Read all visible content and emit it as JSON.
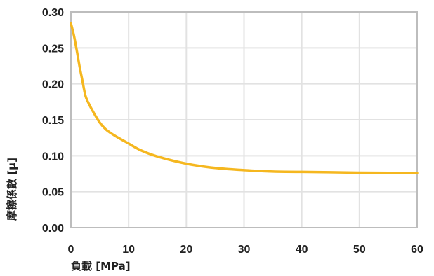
{
  "chart_data": {
    "type": "line",
    "title": "",
    "xlabel": "負載 [MPa]",
    "ylabel": "摩擦係數 [μ]",
    "xlim": [
      0,
      60
    ],
    "ylim": [
      0,
      0.3
    ],
    "x_ticks": [
      "0",
      "10",
      "20",
      "30",
      "40",
      "50",
      "60"
    ],
    "y_ticks": [
      "0.00",
      "0.05",
      "0.10",
      "0.15",
      "0.20",
      "0.25",
      "0.30"
    ],
    "grid": true,
    "series": [
      {
        "color": "#F5B71F",
        "x": [
          0,
          0.5,
          1,
          1.5,
          2,
          2.5,
          3,
          4,
          5,
          6,
          7,
          8,
          10,
          12,
          15,
          20,
          25,
          30,
          35,
          40,
          45,
          50,
          55,
          60
        ],
        "y": [
          0.284,
          0.268,
          0.247,
          0.224,
          0.204,
          0.184,
          0.174,
          0.159,
          0.146,
          0.137,
          0.131,
          0.126,
          0.117,
          0.108,
          0.099,
          0.089,
          0.083,
          0.08,
          0.078,
          0.0775,
          0.077,
          0.0765,
          0.0762,
          0.076
        ]
      }
    ]
  }
}
